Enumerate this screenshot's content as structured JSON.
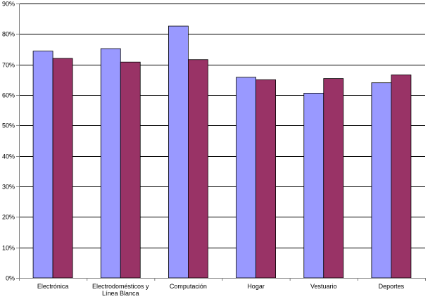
{
  "chart_data": {
    "type": "bar",
    "title": "",
    "xlabel": "",
    "ylabel": "",
    "ylim": [
      0,
      0.9
    ],
    "y_ticks": [
      {
        "value": 0,
        "label": "0%"
      },
      {
        "value": 0.1,
        "label": "10%"
      },
      {
        "value": 0.2,
        "label": "20%"
      },
      {
        "value": 0.3,
        "label": "30%"
      },
      {
        "value": 0.4,
        "label": "40%"
      },
      {
        "value": 0.5,
        "label": "50%"
      },
      {
        "value": 0.6,
        "label": "60%"
      },
      {
        "value": 0.7,
        "label": "70%"
      },
      {
        "value": 0.8,
        "label": "80%"
      },
      {
        "value": 0.9,
        "label": "90%"
      }
    ],
    "categories": [
      [
        "Electrónica"
      ],
      [
        "Electrodomésticos y",
        "Línea Blanca"
      ],
      [
        "Computación"
      ],
      [
        "Hogar"
      ],
      [
        "Vestuario"
      ],
      [
        "Deportes"
      ]
    ],
    "series": [
      {
        "color": "#9999ff",
        "values": [
          0.744,
          0.752,
          0.826,
          0.658,
          0.606,
          0.64
        ]
      },
      {
        "color": "#993366",
        "values": [
          0.72,
          0.708,
          0.716,
          0.65,
          0.654,
          0.666
        ]
      }
    ],
    "grid": true,
    "legend": "none",
    "colors": {
      "gridline": "#000000",
      "axis": "#808080",
      "bar_stroke": "#000000"
    }
  }
}
